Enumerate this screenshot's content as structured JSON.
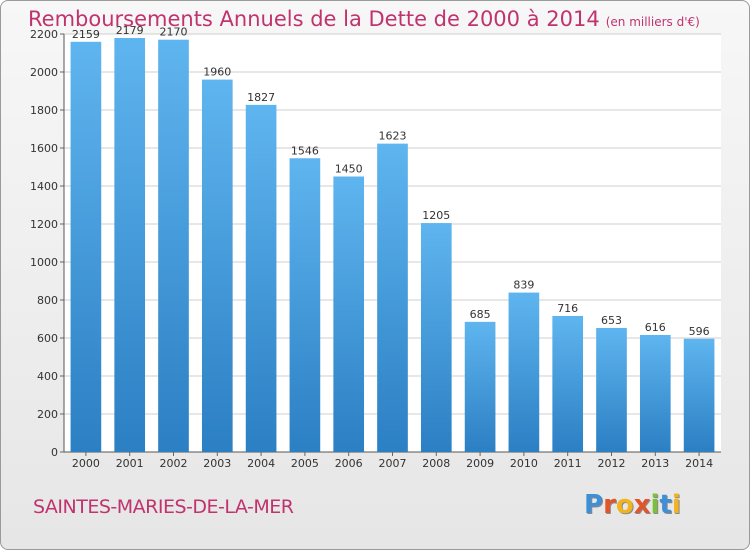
{
  "header": {
    "title": "Remboursements Annuels de la Dette de 2000 à 2014",
    "subtitle": "(en milliers d'€)"
  },
  "footer": {
    "commune": "SAINTES-MARIES-DE-LA-MER",
    "logo_text": "Proxiti"
  },
  "colors": {
    "title": "#c0336e",
    "bar_top": "#5fb5ef",
    "bar_bottom": "#2b7fc3",
    "logo_letters": [
      "#3f8fd6",
      "#e2552b",
      "#f2b320",
      "#e2552b",
      "#7cbf3b",
      "#3f8fd6",
      "#f2b320"
    ]
  },
  "chart_data": {
    "type": "bar",
    "title": "Remboursements Annuels de la Dette de 2000 à 2014",
    "subtitle": "(en milliers d'€)",
    "xlabel": "",
    "ylabel": "",
    "categories": [
      "2000",
      "2001",
      "2002",
      "2003",
      "2004",
      "2005",
      "2006",
      "2007",
      "2008",
      "2009",
      "2010",
      "2011",
      "2012",
      "2013",
      "2014"
    ],
    "values": [
      2159,
      2179,
      2170,
      1960,
      1827,
      1546,
      1450,
      1623,
      1205,
      685,
      839,
      716,
      653,
      616,
      596
    ],
    "yticks": [
      0,
      200,
      400,
      600,
      800,
      1000,
      1200,
      1400,
      1600,
      1800,
      2000,
      2200
    ],
    "ylim": [
      0,
      2200
    ],
    "grid": true,
    "legend": "none"
  }
}
